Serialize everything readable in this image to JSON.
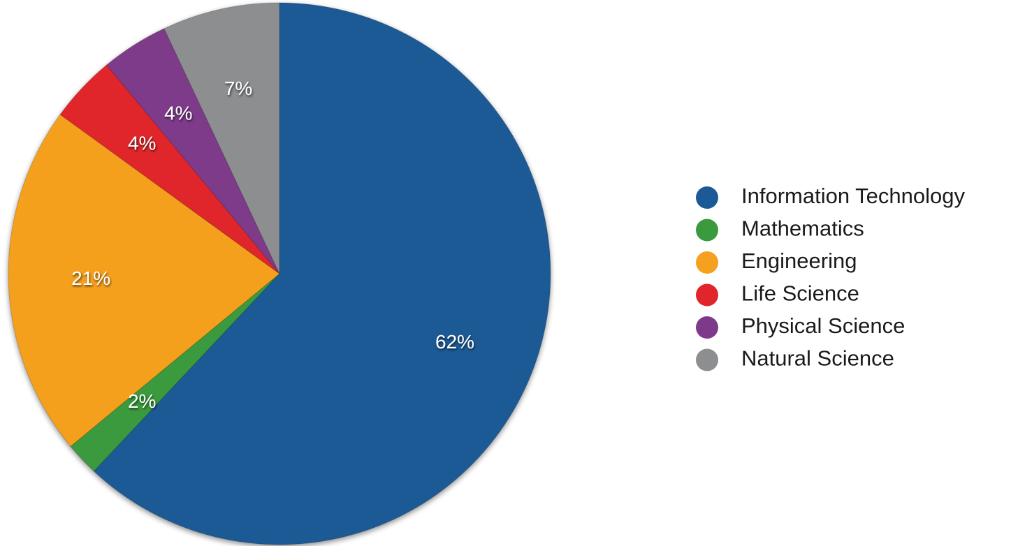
{
  "chart_data": {
    "type": "pie",
    "start": "12 o'clock, clockwise",
    "legend_position": "right",
    "title": "",
    "slices": [
      {
        "name": "Information Technology",
        "value": 62,
        "label": "62%",
        "color": "#1b5a96"
      },
      {
        "name": "Mathematics",
        "value": 2,
        "label": "2%",
        "color": "#3a9a3d"
      },
      {
        "name": "Engineering",
        "value": 21,
        "label": "21%",
        "color": "#f5a01f"
      },
      {
        "name": "Life Science",
        "value": 4,
        "label": "4%",
        "color": "#e0262a"
      },
      {
        "name": "Physical Science",
        "value": 4,
        "label": "4%",
        "color": "#7e3a8a"
      },
      {
        "name": "Natural Science",
        "value": 7,
        "label": "7%",
        "color": "#8c8e8f"
      }
    ]
  }
}
